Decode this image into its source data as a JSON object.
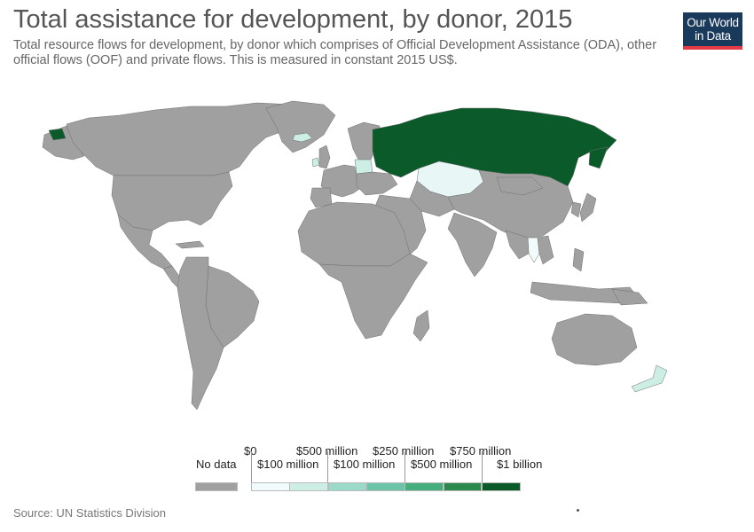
{
  "header": {
    "title": "Total assistance for development, by donor, 2015",
    "subtitle_line1": "Total resource flows for development, by donor which comprises of Official Development Assistance (ODA), other",
    "subtitle_line2": "official flows (OOF) and private flows. This is measured in constant 2015 US$."
  },
  "logo": {
    "line1": "Our World",
    "line2": "in Data"
  },
  "legend": {
    "no_data_label": "No data",
    "no_data_color": "#a0a0a0",
    "top_labels": [
      "$0",
      "$500 million",
      "$250 million",
      "$750 million"
    ],
    "bottom_labels": [
      "$100 million",
      "$100 million",
      "$500 million",
      "$1 billion"
    ],
    "colors": [
      "#f1fbfb",
      "#cdeee5",
      "#9bd9c9",
      "#6cc4a8",
      "#45ae7d",
      "#2a8a4d",
      "#0b5a2a"
    ]
  },
  "map": {
    "countries": [
      {
        "name": "Russia",
        "color": "#0b5a2a"
      },
      {
        "name": "Kazakhstan",
        "color": "#e8f6f6"
      },
      {
        "name": "Poland",
        "color": "#cdeee5"
      },
      {
        "name": "Ireland",
        "color": "#cdeee5"
      },
      {
        "name": "Iceland",
        "color": "#cdeee5"
      },
      {
        "name": "New Zealand",
        "color": "#cdeee5"
      },
      {
        "name": "Thailand",
        "color": "#f1fbfb"
      }
    ]
  },
  "source": "Source: UN Statistics Division"
}
